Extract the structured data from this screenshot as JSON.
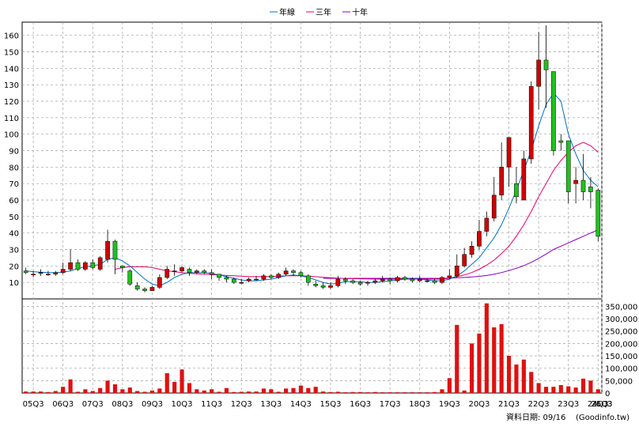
{
  "legend": {
    "ma1": "年線",
    "ma3": "三年",
    "ma10": "十年"
  },
  "footer": {
    "date": "資料日期: 09/16",
    "source": "(Goodinfo.tw)"
  },
  "colors": {
    "up": "#d00000",
    "down": "#1ec31e",
    "volume": "#e01010",
    "ma1": "#0070c0",
    "ma3": "#e0006e",
    "ma10": "#8000c0",
    "grid": "#a0a0a0"
  },
  "chart_data": [
    {
      "type": "candlestick",
      "ylim": [
        0,
        168
      ],
      "yticks": [
        10,
        20,
        30,
        40,
        50,
        60,
        70,
        80,
        90,
        100,
        110,
        120,
        130,
        140,
        150,
        160
      ],
      "xlabels": [
        "05Q3",
        "06Q3",
        "07Q3",
        "08Q3",
        "09Q3",
        "10Q3",
        "11Q3",
        "12Q3",
        "13Q3",
        "14Q3",
        "15Q3",
        "16Q3",
        "17Q3",
        "18Q3",
        "19Q3",
        "20Q3",
        "21Q3",
        "22Q3",
        "23Q3",
        "24Q3",
        "25Q3",
        "26Q3"
      ],
      "candles": [
        [
          17,
          16,
          19,
          15
        ],
        [
          15,
          15,
          17,
          13
        ],
        [
          16,
          16,
          18,
          14
        ],
        [
          15,
          15,
          17,
          14
        ],
        [
          15,
          16,
          17,
          14
        ],
        [
          16,
          18,
          22,
          15
        ],
        [
          18,
          22,
          30,
          17
        ],
        [
          22,
          18,
          24,
          17
        ],
        [
          18,
          22,
          23,
          17
        ],
        [
          22,
          19,
          24,
          18
        ],
        [
          18,
          25,
          26,
          17
        ],
        [
          24,
          35,
          42,
          22
        ],
        [
          35,
          24,
          36,
          15
        ],
        [
          20,
          19,
          20,
          16
        ],
        [
          17,
          9,
          18,
          8
        ],
        [
          8,
          6,
          10,
          5
        ],
        [
          6,
          5,
          7,
          4
        ],
        [
          5,
          7,
          8,
          5
        ],
        [
          7,
          13,
          15,
          6
        ],
        [
          13,
          18,
          20,
          12
        ],
        [
          17,
          17,
          21,
          14
        ],
        [
          17,
          19,
          20,
          16
        ],
        [
          18,
          16,
          19,
          14
        ],
        [
          16,
          17,
          18,
          15
        ],
        [
          17,
          16,
          18,
          15
        ],
        [
          16,
          15,
          18,
          12
        ],
        [
          15,
          13,
          15,
          11
        ],
        [
          13,
          12,
          14,
          10
        ],
        [
          12,
          10,
          13,
          9
        ],
        [
          10,
          10,
          12,
          9
        ],
        [
          11,
          12,
          13,
          10
        ],
        [
          12,
          12,
          14,
          11
        ],
        [
          12,
          14,
          15,
          11
        ],
        [
          14,
          13,
          15,
          12
        ],
        [
          13,
          15,
          16,
          12
        ],
        [
          15,
          17,
          19,
          14
        ],
        [
          17,
          16,
          18,
          14
        ],
        [
          16,
          14,
          17,
          13
        ],
        [
          14,
          10,
          15,
          8
        ],
        [
          9,
          8,
          11,
          7
        ],
        [
          8,
          7,
          10,
          6
        ],
        [
          7,
          8,
          10,
          6
        ],
        [
          8,
          12,
          14,
          7
        ],
        [
          12,
          11,
          13,
          9
        ],
        [
          11,
          10,
          12,
          9
        ],
        [
          10,
          9,
          11,
          8
        ],
        [
          10,
          10,
          11,
          8
        ],
        [
          10,
          11,
          12,
          9
        ],
        [
          11,
          12,
          14,
          10
        ],
        [
          12,
          11,
          13,
          9
        ],
        [
          11,
          13,
          14,
          10
        ],
        [
          13,
          12,
          14,
          11
        ],
        [
          12,
          11,
          13,
          10
        ],
        [
          11,
          12,
          14,
          10
        ],
        [
          11,
          11,
          12,
          10
        ],
        [
          11,
          10,
          12,
          9
        ],
        [
          10,
          13,
          14,
          9
        ],
        [
          13,
          14,
          18,
          12
        ],
        [
          14,
          20,
          27,
          13
        ],
        [
          20,
          27,
          31,
          19
        ],
        [
          27,
          32,
          35,
          25
        ],
        [
          32,
          41,
          48,
          30
        ],
        [
          41,
          49,
          53,
          38
        ],
        [
          49,
          63,
          74,
          47
        ],
        [
          63,
          80,
          95,
          60
        ],
        [
          80,
          98,
          98,
          68
        ],
        [
          70,
          62,
          80,
          58
        ],
        [
          60,
          85,
          90,
          60
        ],
        [
          85,
          129,
          132,
          82
        ],
        [
          129,
          145,
          162,
          115
        ],
        [
          145,
          139,
          166,
          116
        ],
        [
          138,
          90,
          132,
          87
        ],
        [
          96,
          95,
          100,
          90
        ],
        [
          96,
          65,
          94,
          58
        ],
        [
          70,
          72,
          80,
          58
        ],
        [
          72,
          65,
          88,
          60
        ],
        [
          68,
          65,
          74,
          55
        ],
        [
          66,
          38,
          67,
          35
        ]
      ],
      "ma1": [
        17,
        16.5,
        16.2,
        16,
        16,
        16.2,
        17,
        18.5,
        19.5,
        20,
        21,
        24,
        25,
        23,
        20,
        16,
        12,
        9,
        8,
        10,
        13,
        15,
        16,
        16,
        16,
        15.5,
        14.5,
        13.5,
        12.5,
        11.5,
        11,
        11,
        11.5,
        12,
        13,
        14,
        14.5,
        14,
        13,
        11.5,
        10,
        9,
        9.5,
        10.5,
        10.5,
        10.5,
        10,
        10,
        10.5,
        11,
        11.5,
        12,
        12,
        12,
        11.5,
        11,
        11,
        12,
        14,
        17,
        21,
        25,
        31,
        37,
        45,
        55,
        66,
        78,
        90,
        105,
        118,
        125,
        120,
        100,
        88,
        78,
        72,
        68
      ],
      "ma3": [
        null,
        null,
        null,
        null,
        null,
        null,
        null,
        null,
        null,
        null,
        null,
        null,
        18,
        19,
        19.5,
        19.5,
        19.5,
        19,
        18,
        17,
        16.5,
        16,
        15.5,
        15.2,
        15,
        14.7,
        14.5,
        14.2,
        14,
        13.8,
        13.6,
        13.5,
        13.5,
        13.6,
        13.8,
        14,
        14.1,
        14,
        13.8,
        13.5,
        13.1,
        12.8,
        12.6,
        12.4,
        12.3,
        12.2,
        12.1,
        12,
        12,
        12,
        12,
        12,
        12,
        12,
        12,
        12,
        12,
        12.5,
        13.5,
        14.5,
        16,
        18,
        20.5,
        23.5,
        27.5,
        32,
        38,
        45,
        53,
        62,
        70,
        78,
        84,
        89,
        93,
        95,
        93,
        89
      ],
      "ma10": [
        null,
        null,
        null,
        null,
        null,
        null,
        null,
        null,
        null,
        null,
        null,
        null,
        null,
        null,
        null,
        null,
        null,
        null,
        null,
        null,
        null,
        null,
        null,
        null,
        null,
        null,
        null,
        null,
        null,
        null,
        null,
        null,
        null,
        null,
        null,
        null,
        null,
        null,
        null,
        null,
        12.5,
        12.5,
        12.5,
        12.5,
        12.5,
        12.5,
        12.5,
        12.5,
        12.5,
        12.5,
        12.5,
        12.5,
        12.5,
        12.5,
        12.5,
        12.5,
        12.5,
        12.6,
        12.8,
        13,
        13.3,
        13.7,
        14.2,
        15,
        16,
        17.2,
        18.6,
        20.2,
        22.2,
        24.6,
        27.2,
        30,
        32,
        34,
        36,
        38,
        40,
        42
      ],
      "volume_ylim": [
        0,
        380000
      ],
      "volume_ticks": [
        0,
        50000,
        100000,
        150000,
        200000,
        250000,
        300000,
        350000
      ],
      "volume_tick_labels": [
        "0",
        "50,000",
        "100,000",
        "150,000",
        "200,000",
        "250,000",
        "300,000",
        "350,000"
      ],
      "volume": [
        6000,
        6000,
        6000,
        4000,
        8000,
        25000,
        55000,
        5000,
        15000,
        8000,
        20000,
        50000,
        35000,
        15000,
        22000,
        8000,
        5000,
        10000,
        18000,
        80000,
        45000,
        95000,
        40000,
        15000,
        10000,
        15000,
        5000,
        20000,
        4000,
        5000,
        6000,
        6000,
        18000,
        15000,
        5000,
        18000,
        20000,
        30000,
        20000,
        25000,
        6000,
        4000,
        5000,
        3000,
        4000,
        4000,
        3000,
        4000,
        3000,
        3000,
        3000,
        3000,
        3000,
        3000,
        3000,
        4000,
        15000,
        60000,
        275000,
        10000,
        200000,
        240000,
        362000,
        265000,
        278000,
        150000,
        115000,
        135000,
        85000,
        40000,
        25000,
        25000,
        32000,
        27000,
        22000,
        58000,
        50000,
        15000
      ]
    }
  ]
}
